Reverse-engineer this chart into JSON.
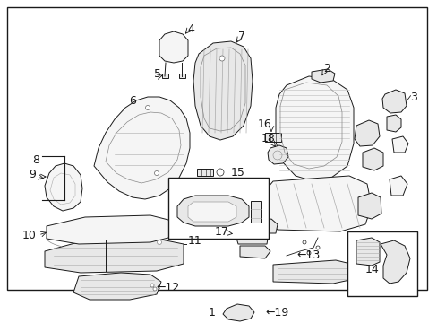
{
  "background_color": "#ffffff",
  "line_color": "#1a1a1a",
  "light_fill": "#f5f5f5",
  "mid_fill": "#e8e8e8",
  "dark_fill": "#d8d8d8",
  "font_size": 8.5,
  "border": [
    8,
    8,
    469,
    315
  ]
}
